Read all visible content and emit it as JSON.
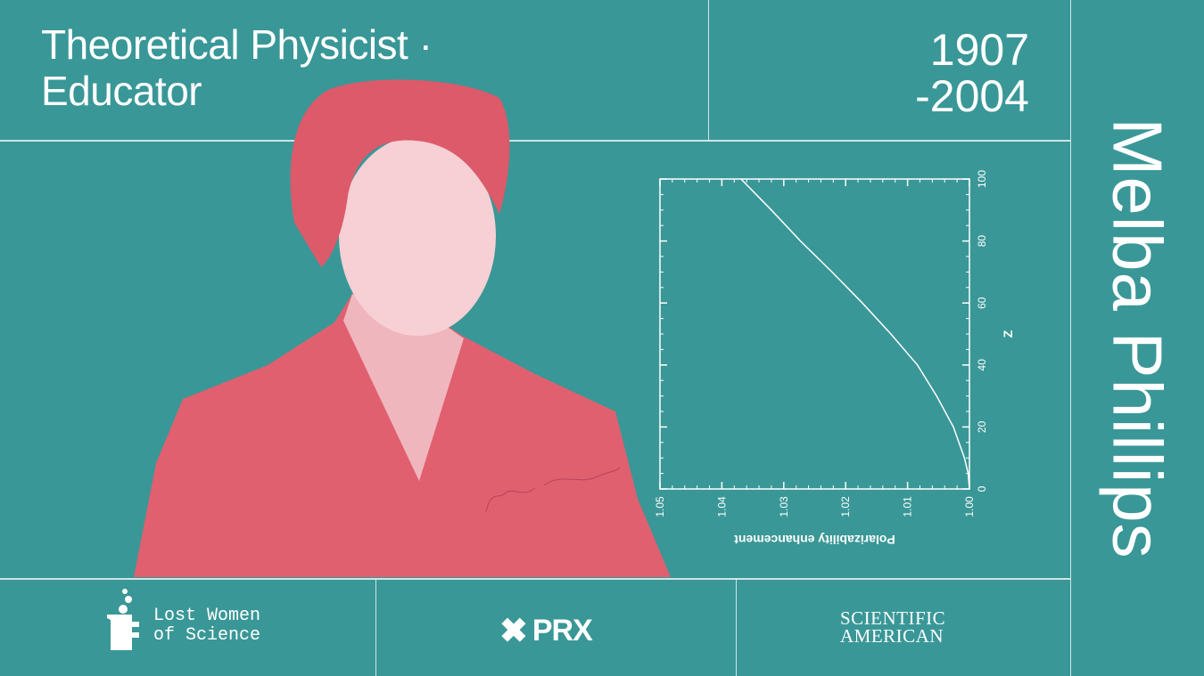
{
  "header": {
    "title_line1": "Theoretical Physicist ·",
    "title_line2": "Educator",
    "dates_line1": "1907",
    "dates_line2": "-2004"
  },
  "name": "Melba Phillips",
  "portrait": {
    "description_icon": "portrait-photo",
    "signature": "Melba Phillips"
  },
  "colors": {
    "background": "#3a9797",
    "portrait": "#e0606f",
    "text": "#ffffff"
  },
  "footer": {
    "logos": [
      {
        "name": "Lost Women of Science",
        "line1": "Lost Women",
        "line2": "of Science",
        "icon": "beaker-icon"
      },
      {
        "name": "PRX",
        "text": "PRX",
        "icon": "x-mark-icon"
      },
      {
        "name": "Scientific American",
        "line1": "SCIENTIFIC",
        "line2": "AMERICAN"
      }
    ]
  },
  "chart_data": {
    "type": "line",
    "orientation": "rotated 90 degrees counter-clockwise",
    "xlabel": "Z",
    "ylabel": "Polarizability enhancement",
    "xlim": [
      0,
      100
    ],
    "ylim": [
      1.0,
      1.05
    ],
    "xticks": [
      "0",
      "20",
      "40",
      "60",
      "80",
      "100"
    ],
    "yticks": [
      "1.00",
      "1.01",
      "1.02",
      "1.03",
      "1.04",
      "1.05"
    ],
    "grid": false,
    "series": [
      {
        "x": [
          0,
          5,
          10,
          20,
          30,
          40,
          50,
          60,
          70,
          80,
          90,
          100
        ],
        "y": [
          1.0,
          1.0002,
          1.0008,
          1.0026,
          1.0053,
          1.0084,
          1.0127,
          1.0173,
          1.0222,
          1.0273,
          1.032,
          1.0369
        ]
      }
    ]
  }
}
